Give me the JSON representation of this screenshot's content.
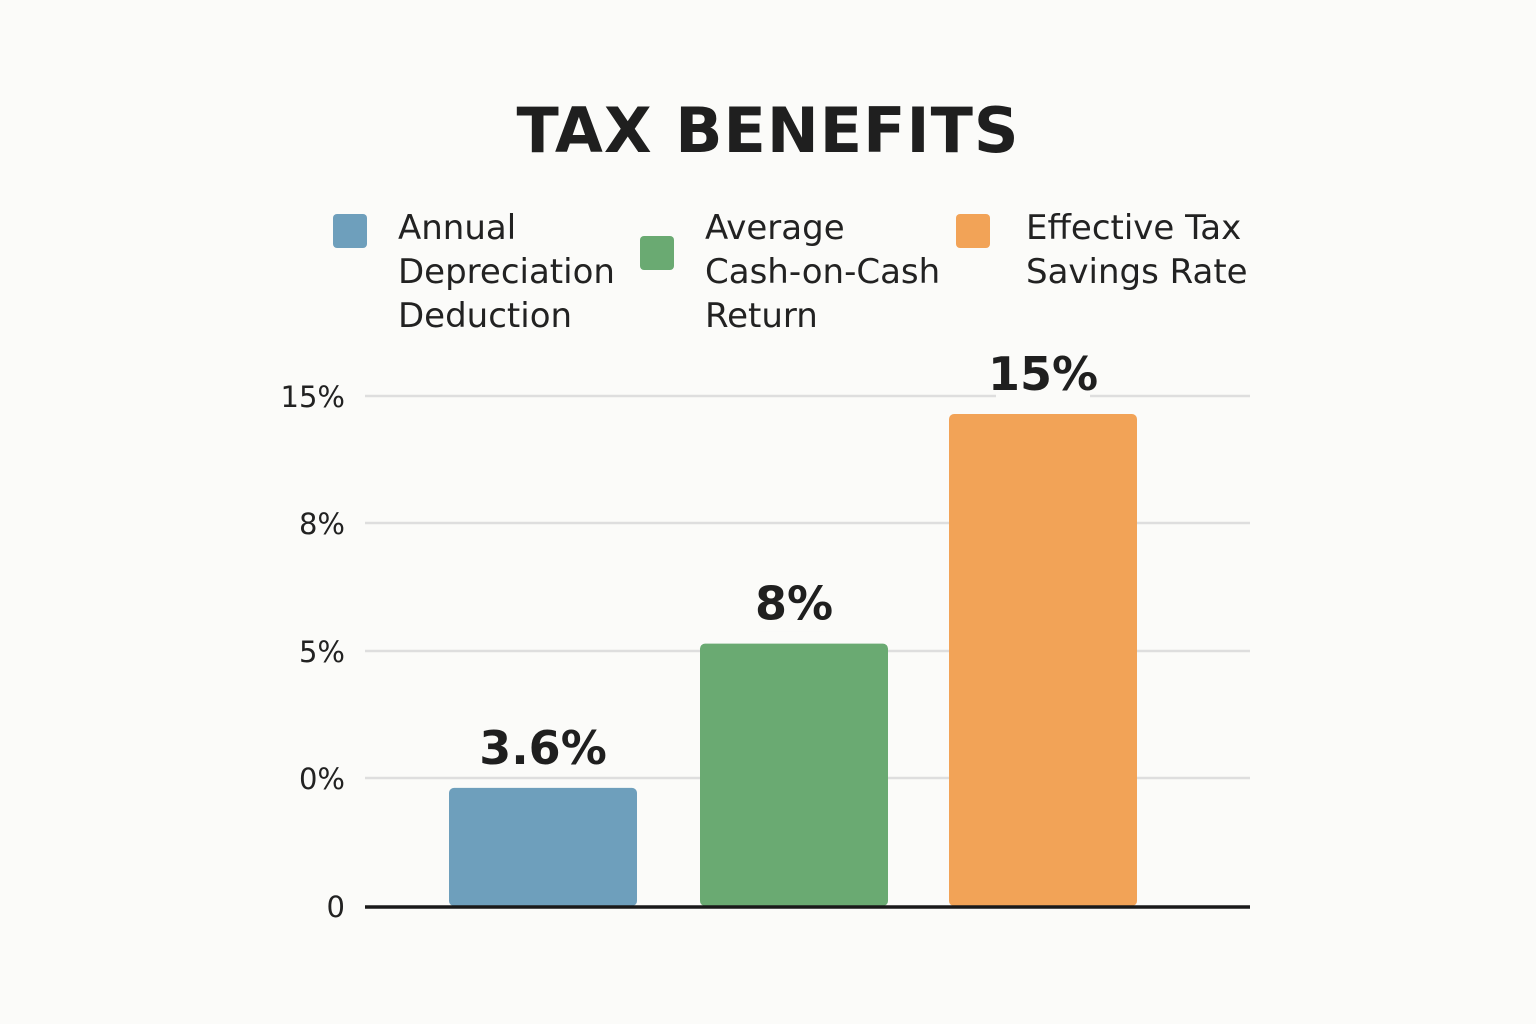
{
  "colors": {
    "background": "#fbfbf9",
    "series": [
      "#6e9fbc",
      "#6aaa72",
      "#f2a357"
    ],
    "grid": "#dedede",
    "axis": "#1a1a1a"
  },
  "chart_data": {
    "type": "bar",
    "title": "TAX BENEFITS",
    "categories": [
      "Annual Depreciation Deduction",
      "Average Cash-on-Cash Return",
      "Effective Tax Savings Rate"
    ],
    "values": [
      3.6,
      8,
      15
    ],
    "data_labels": [
      "3.6%",
      "8%",
      "15%"
    ],
    "legend": {
      "position": "top",
      "entries": [
        {
          "label": "Annual\nDepreciation\nDeduction",
          "color": "#6e9fbc"
        },
        {
          "label": "Average\nCash-on-Cash\nReturn",
          "color": "#6aaa72"
        },
        {
          "label": "Effective Tax\nSavings Rate",
          "color": "#f2a357"
        }
      ]
    },
    "y_ticks": [
      "0",
      "0%",
      "5%",
      "8%",
      "15%"
    ],
    "grid": true,
    "xlabel": "",
    "ylabel": ""
  }
}
